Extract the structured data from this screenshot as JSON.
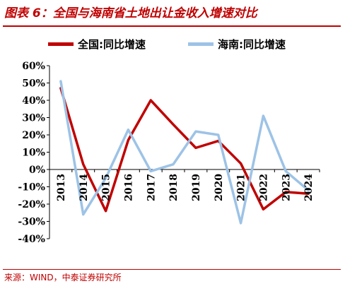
{
  "title": "图表 6：全国与海南省土地出让金收入增速对比",
  "source": "来源：WIND，中泰证券研究所",
  "chart_data": {
    "type": "line",
    "x": [
      "2013",
      "2014",
      "2015",
      "2016",
      "2017",
      "2018",
      "2019",
      "2020",
      "2021",
      "2022",
      "2023",
      "2024"
    ],
    "series": [
      {
        "name": "全国:同比增速",
        "color": "#c00000",
        "values": [
          47,
          3,
          -24,
          17,
          40,
          26,
          12.5,
          16.5,
          3.5,
          -23,
          -13,
          -14
        ]
      },
      {
        "name": "海南:同比增速",
        "color": "#9dc3e6",
        "values": [
          51,
          -26,
          -5,
          23,
          -1,
          3,
          22,
          20,
          -31,
          31,
          -1,
          -12
        ]
      }
    ],
    "ylim": [
      -40,
      60
    ],
    "yticks": [
      "-40%",
      "-30%",
      "-20%",
      "-10%",
      "0%",
      "10%",
      "20%",
      "30%",
      "40%",
      "50%",
      "60%"
    ],
    "legend_position": "top",
    "grid": false
  }
}
